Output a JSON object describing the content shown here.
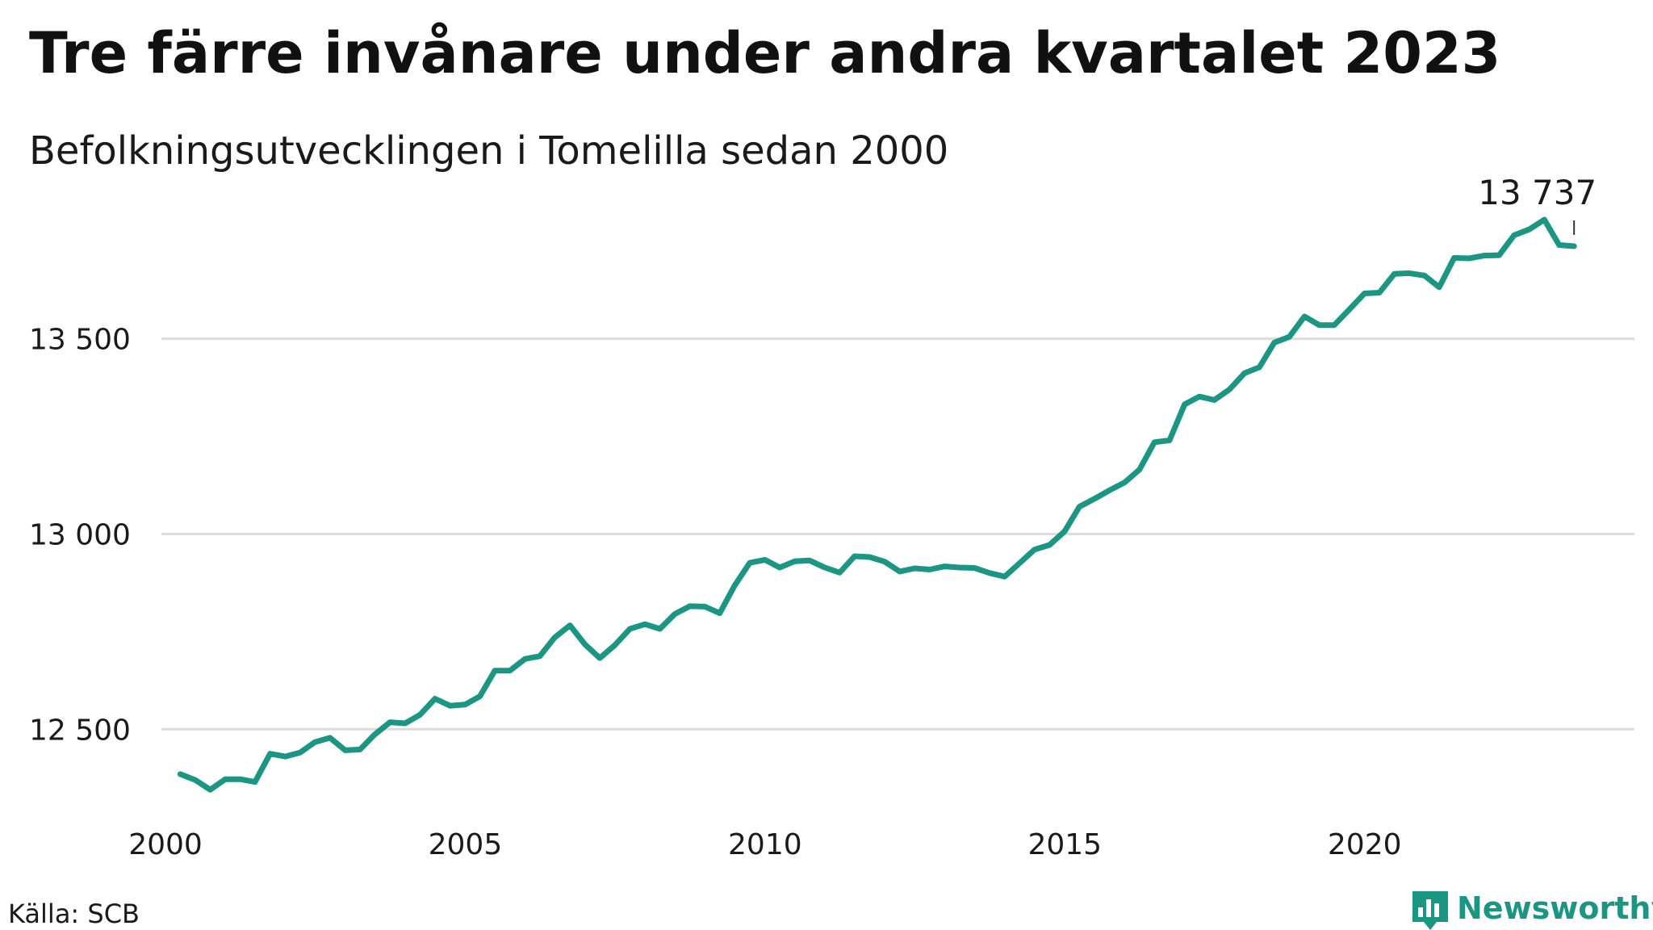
{
  "chart_data": {
    "type": "line",
    "title": "Tre färre invånare under andra kvartalet 2023",
    "subtitle": "Befolkningsutvecklingen i Tomelilla sedan 2000",
    "xlabel": "",
    "ylabel": "",
    "source": "Källa: SCB",
    "brand": "Newsworthy",
    "last_value_label": "13 737",
    "color": "#1a9683",
    "grid": true,
    "ylim": [
      12300,
      13830
    ],
    "xlim": [
      2000.0,
      2024.5
    ],
    "x_ticks": [
      {
        "value": 2000,
        "label": "2000"
      },
      {
        "value": 2005,
        "label": "2005"
      },
      {
        "value": 2010,
        "label": "2010"
      },
      {
        "value": 2015,
        "label": "2015"
      },
      {
        "value": 2020,
        "label": "2020"
      }
    ],
    "y_ticks": [
      {
        "value": 12500,
        "label": "12 500"
      },
      {
        "value": 13000,
        "label": "13 000"
      },
      {
        "value": 13500,
        "label": "13 500"
      }
    ],
    "x": [
      "2000-03-31",
      "2000-06-30",
      "2000-09-30",
      "2000-12-31",
      "2001-03-31",
      "2001-06-30",
      "2001-09-30",
      "2001-12-31",
      "2002-03-31",
      "2002-06-30",
      "2002-09-30",
      "2002-12-31",
      "2003-03-31",
      "2003-06-30",
      "2003-09-30",
      "2003-12-31",
      "2004-03-31",
      "2004-06-30",
      "2004-09-30",
      "2004-12-31",
      "2005-03-31",
      "2005-06-30",
      "2005-09-30",
      "2005-12-31",
      "2006-03-31",
      "2006-06-30",
      "2006-09-30",
      "2006-12-31",
      "2007-03-31",
      "2007-06-30",
      "2007-09-30",
      "2007-12-31",
      "2008-03-31",
      "2008-06-30",
      "2008-09-30",
      "2008-12-31",
      "2009-03-31",
      "2009-06-30",
      "2009-09-30",
      "2009-12-31",
      "2010-03-31",
      "2010-06-30",
      "2010-09-30",
      "2010-12-31",
      "2011-03-31",
      "2011-06-30",
      "2011-09-30",
      "2011-12-31",
      "2012-03-31",
      "2012-06-30",
      "2012-09-30",
      "2012-12-31",
      "2013-03-31",
      "2013-06-30",
      "2013-09-30",
      "2013-12-31",
      "2014-03-31",
      "2014-06-30",
      "2014-09-30",
      "2014-12-31",
      "2015-03-31",
      "2015-06-30",
      "2015-09-30",
      "2015-12-31",
      "2016-03-31",
      "2016-06-30",
      "2016-09-30",
      "2016-12-31",
      "2017-03-31",
      "2017-06-30",
      "2017-09-30",
      "2017-12-31",
      "2018-03-31",
      "2018-06-30",
      "2018-09-30",
      "2018-12-31",
      "2019-03-31",
      "2019-06-30",
      "2019-09-30",
      "2019-12-31",
      "2020-03-31",
      "2020-06-30",
      "2020-09-30",
      "2020-12-31",
      "2021-03-31",
      "2021-06-30",
      "2021-09-30",
      "2021-12-31",
      "2022-03-31",
      "2022-06-30",
      "2022-09-30",
      "2022-12-31",
      "2023-03-31",
      "2023-06-30"
    ],
    "series": [
      {
        "values": [
          12385,
          12370,
          12345,
          12372,
          12372,
          12365,
          12437,
          12430,
          12440,
          12467,
          12478,
          12446,
          12448,
          12487,
          12518,
          12515,
          12537,
          12578,
          12560,
          12563,
          12584,
          12650,
          12650,
          12680,
          12687,
          12735,
          12766,
          12717,
          12682,
          12715,
          12757,
          12769,
          12757,
          12795,
          12815,
          12814,
          12797,
          12868,
          12926,
          12934,
          12914,
          12930,
          12932,
          12914,
          12901,
          12943,
          12941,
          12929,
          12904,
          12912,
          12909,
          12917,
          12914,
          12913,
          12900,
          12891,
          12925,
          12960,
          12972,
          13007,
          13070,
          13090,
          13112,
          13132,
          13165,
          13235,
          13240,
          13332,
          13352,
          13343,
          13370,
          13412,
          13427,
          13490,
          13505,
          13557,
          13535,
          13535,
          13575,
          13616,
          13618,
          13666,
          13668,
          13662,
          13632,
          13707,
          13706,
          13713,
          13714,
          13765,
          13780,
          13805,
          13740,
          13737
        ]
      }
    ]
  }
}
